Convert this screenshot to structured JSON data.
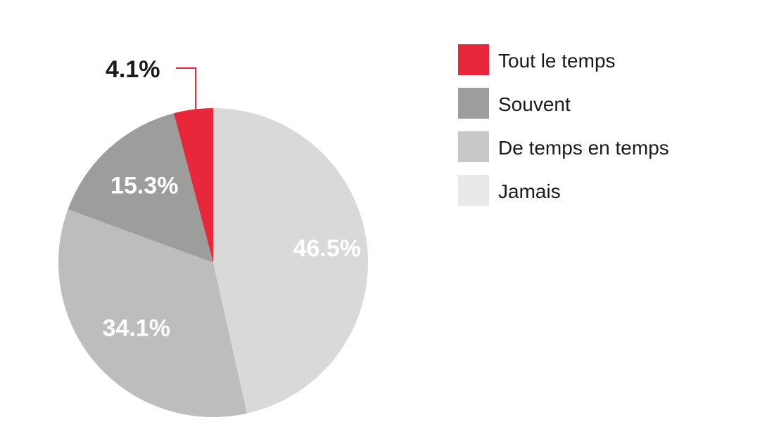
{
  "chart_data": {
    "type": "pie",
    "title": "",
    "start_angle_deg": 0,
    "direction": "clockwise",
    "slices": [
      {
        "name": "Jamais",
        "value": 46.5,
        "label": "46.5%",
        "color": "#d9d9d9",
        "label_color": "#ffffff",
        "callout": false
      },
      {
        "name": "De temps en temps",
        "value": 34.1,
        "label": "34.1%",
        "color": "#bdbdbd",
        "label_color": "#ffffff",
        "callout": false
      },
      {
        "name": "Souvent",
        "value": 15.3,
        "label": "15.3%",
        "color": "#9d9d9b",
        "label_color": "#ffffff",
        "callout": false
      },
      {
        "name": "Tout le temps",
        "value": 4.1,
        "label": "4.1%",
        "color": "#e8283a",
        "label_color": "#1a1a1a",
        "callout": true
      }
    ],
    "legend": {
      "position": "right",
      "entries": [
        {
          "label": "Tout le temps",
          "color": "#e8283a"
        },
        {
          "label": "Souvent",
          "color": "#9d9d9b"
        },
        {
          "label": "De temps en temps",
          "color": "#c8c8c8"
        },
        {
          "label": "Jamais",
          "color": "#e8e8e8"
        }
      ]
    },
    "callout_line_color": "#e8283a"
  }
}
